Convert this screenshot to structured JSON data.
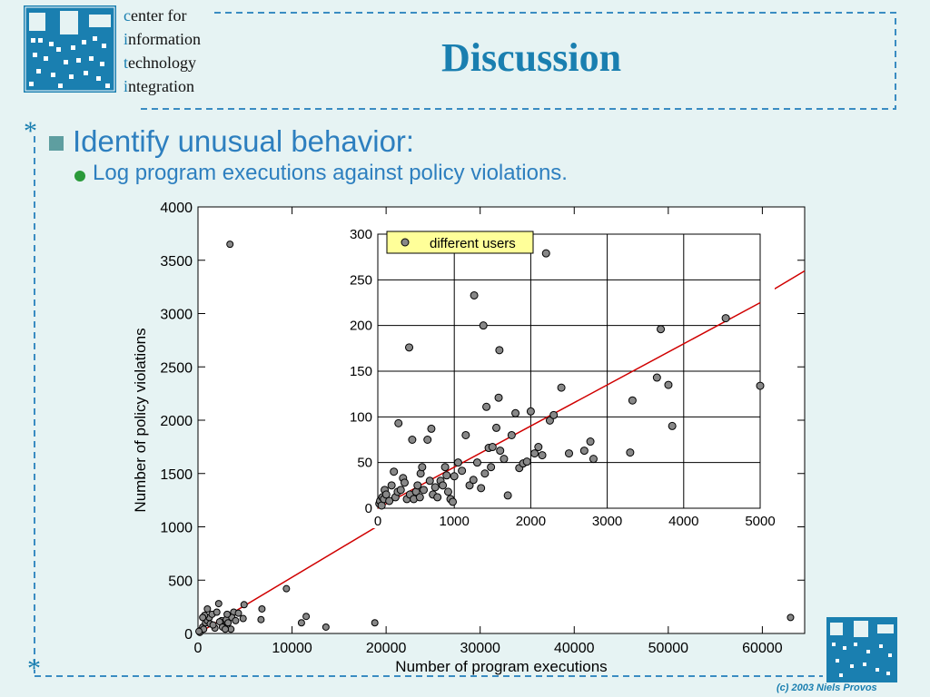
{
  "header": {
    "logo_lines": [
      "center for",
      "information",
      "technology",
      "integration"
    ],
    "title": "Discussion"
  },
  "bullets": {
    "level1": "Identify unusual behavior:",
    "level2": "Log program executions against policy violations."
  },
  "footer": {
    "credit": "(c) 2003 Niels Provos"
  },
  "colors": {
    "accent": "#1a7fb0",
    "bullet_text": "#2d7fbf",
    "fit_line": "#d00000",
    "legend_bg": "#ffff99",
    "background": "#e6f3f3"
  },
  "chart_data": [
    {
      "type": "scatter",
      "xlabel": "Number of program executions",
      "ylabel": "Number of policy violations",
      "xlim": [
        0,
        64500
      ],
      "ylim": [
        0,
        4000
      ],
      "xticks": [
        0,
        10000,
        20000,
        30000,
        40000,
        50000,
        60000
      ],
      "yticks": [
        0,
        500,
        1000,
        1500,
        2000,
        2500,
        3000,
        3500,
        4000
      ],
      "grid": false,
      "points": [
        [
          3400,
          3650
        ],
        [
          300,
          30
        ],
        [
          500,
          60
        ],
        [
          800,
          100
        ],
        [
          1000,
          120
        ],
        [
          1200,
          150
        ],
        [
          1500,
          180
        ],
        [
          1000,
          230
        ],
        [
          2200,
          280
        ],
        [
          2500,
          120
        ],
        [
          2800,
          60
        ],
        [
          3000,
          130
        ],
        [
          3500,
          40
        ],
        [
          3800,
          200
        ],
        [
          4300,
          190
        ],
        [
          4800,
          140
        ],
        [
          4900,
          270
        ],
        [
          6700,
          130
        ],
        [
          6800,
          230
        ],
        [
          9400,
          420
        ],
        [
          11000,
          100
        ],
        [
          11500,
          160
        ],
        [
          13600,
          60
        ],
        [
          18800,
          100
        ],
        [
          63000,
          150
        ],
        [
          200,
          10
        ],
        [
          600,
          40
        ],
        [
          1300,
          90
        ],
        [
          1800,
          50
        ],
        [
          2000,
          200
        ],
        [
          2300,
          110
        ],
        [
          2600,
          60
        ],
        [
          3200,
          100
        ],
        [
          3600,
          150
        ],
        [
          4000,
          120
        ],
        [
          700,
          170
        ],
        [
          1600,
          80
        ],
        [
          2900,
          40
        ],
        [
          3100,
          180
        ],
        [
          500,
          150
        ],
        [
          100,
          20
        ]
      ],
      "fit_line": {
        "from": [
          0,
          0
        ],
        "to": [
          64500,
          3400
        ],
        "color": "#d00000"
      }
    },
    {
      "type": "scatter",
      "legend": "different users",
      "legend_position": "top-left",
      "xlim": [
        0,
        5000
      ],
      "ylim": [
        0,
        300
      ],
      "xticks": [
        0,
        1000,
        2000,
        3000,
        4000,
        5000
      ],
      "yticks": [
        0,
        50,
        100,
        150,
        200,
        250,
        300
      ],
      "grid": true,
      "points": [
        [
          20,
          5
        ],
        [
          30,
          8
        ],
        [
          50,
          3
        ],
        [
          60,
          12
        ],
        [
          80,
          10
        ],
        [
          90,
          20
        ],
        [
          110,
          15
        ],
        [
          150,
          8
        ],
        [
          180,
          25
        ],
        [
          210,
          40
        ],
        [
          230,
          12
        ],
        [
          260,
          18
        ],
        [
          270,
          93
        ],
        [
          300,
          20
        ],
        [
          330,
          33
        ],
        [
          350,
          28
        ],
        [
          380,
          10
        ],
        [
          410,
          176
        ],
        [
          420,
          15
        ],
        [
          450,
          75
        ],
        [
          470,
          10
        ],
        [
          500,
          18
        ],
        [
          520,
          25
        ],
        [
          550,
          12
        ],
        [
          560,
          38
        ],
        [
          580,
          45
        ],
        [
          600,
          20
        ],
        [
          650,
          75
        ],
        [
          680,
          30
        ],
        [
          700,
          87
        ],
        [
          720,
          15
        ],
        [
          750,
          23
        ],
        [
          780,
          12
        ],
        [
          820,
          30
        ],
        [
          850,
          25
        ],
        [
          880,
          45
        ],
        [
          900,
          36
        ],
        [
          920,
          18
        ],
        [
          950,
          10
        ],
        [
          980,
          7
        ],
        [
          1000,
          35
        ],
        [
          1050,
          50
        ],
        [
          1100,
          41
        ],
        [
          1150,
          80
        ],
        [
          1200,
          25
        ],
        [
          1250,
          31
        ],
        [
          1260,
          233
        ],
        [
          1300,
          50
        ],
        [
          1350,
          22
        ],
        [
          1380,
          200
        ],
        [
          1400,
          38
        ],
        [
          1420,
          111
        ],
        [
          1450,
          66
        ],
        [
          1480,
          45
        ],
        [
          1500,
          67
        ],
        [
          1550,
          88
        ],
        [
          1580,
          121
        ],
        [
          1590,
          173
        ],
        [
          1600,
          63
        ],
        [
          1650,
          54
        ],
        [
          1700,
          14
        ],
        [
          1750,
          80
        ],
        [
          1800,
          104
        ],
        [
          1850,
          44
        ],
        [
          1900,
          49
        ],
        [
          1950,
          51
        ],
        [
          2000,
          106
        ],
        [
          2050,
          60
        ],
        [
          2100,
          67
        ],
        [
          2150,
          58
        ],
        [
          2200,
          279
        ],
        [
          2250,
          96
        ],
        [
          2300,
          102
        ],
        [
          2400,
          132
        ],
        [
          2500,
          60
        ],
        [
          2700,
          63
        ],
        [
          2780,
          73
        ],
        [
          2820,
          54
        ],
        [
          3300,
          61
        ],
        [
          3330,
          118
        ],
        [
          3650,
          143
        ],
        [
          3700,
          196
        ],
        [
          3800,
          135
        ],
        [
          3850,
          90
        ],
        [
          4550,
          208
        ],
        [
          5000,
          134
        ]
      ],
      "fit_line": {
        "from": [
          0,
          0
        ],
        "to": [
          5000,
          225
        ],
        "color": "#d00000"
      }
    }
  ]
}
